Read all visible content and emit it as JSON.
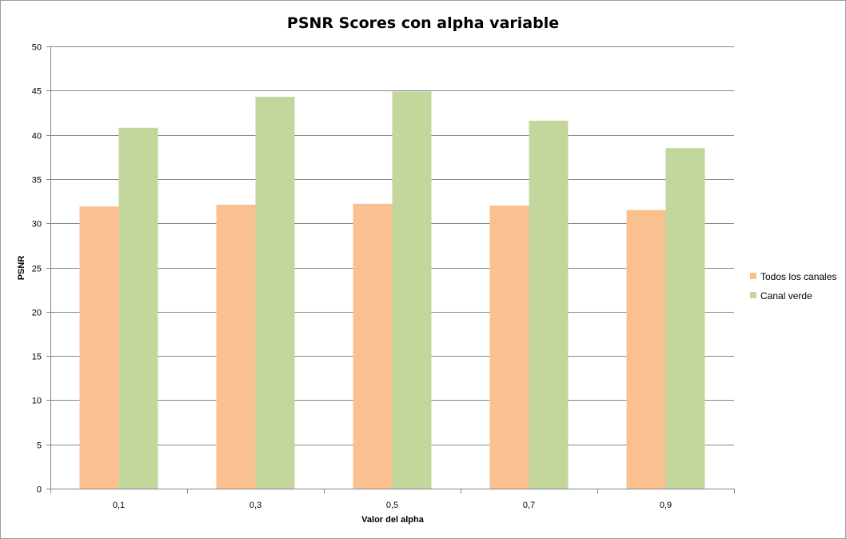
{
  "chart_data": {
    "type": "bar",
    "title": "PSNR Scores con alpha variable",
    "xlabel": "Valor del alpha",
    "ylabel": "PSNR",
    "categories": [
      "0,1",
      "0,3",
      "0,5",
      "0,7",
      "0,9"
    ],
    "series": [
      {
        "name": "Todos los canales",
        "color": "#fac090",
        "values": [
          31.9,
          32.1,
          32.2,
          32.0,
          31.5
        ]
      },
      {
        "name": "Canal verde",
        "color": "#c3d69b",
        "values": [
          40.8,
          44.3,
          44.9,
          41.6,
          38.5
        ]
      }
    ],
    "ylim": [
      0,
      50
    ],
    "yticks": [
      "0",
      "5",
      "10",
      "15",
      "20",
      "25",
      "30",
      "35",
      "40",
      "45",
      "50"
    ],
    "grid": true,
    "legend_position": "right"
  }
}
